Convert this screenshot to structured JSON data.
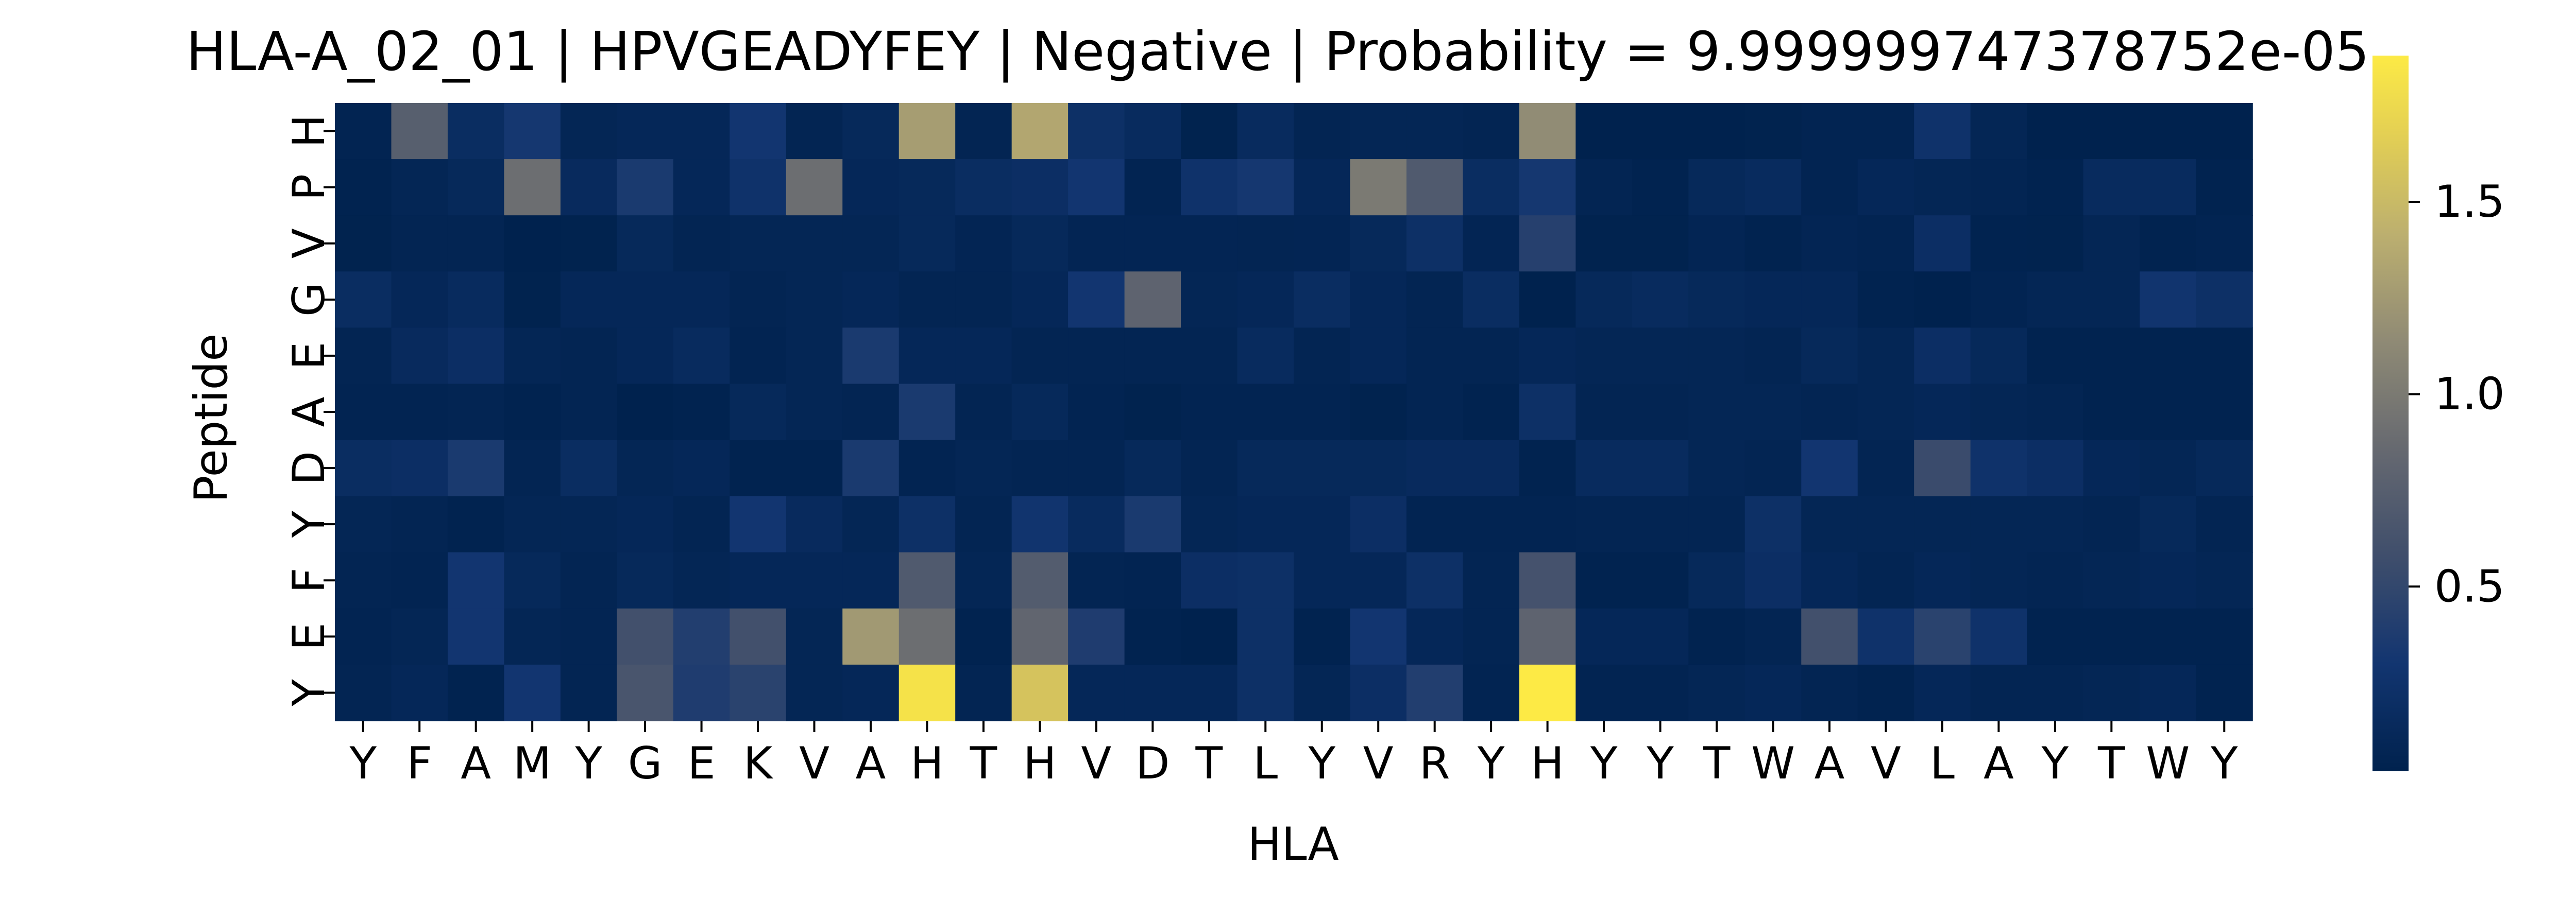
{
  "chart_data": {
    "type": "heatmap",
    "title": "HLA-A_02_01 | HPVGEADYFEY | Negative | Probability = 9.999999747378752e-05",
    "xlabel": "HLA",
    "ylabel": "Peptide",
    "x_categories": [
      "Y",
      "F",
      "A",
      "M",
      "Y",
      "G",
      "E",
      "K",
      "V",
      "A",
      "H",
      "T",
      "H",
      "V",
      "D",
      "T",
      "L",
      "Y",
      "V",
      "R",
      "Y",
      "H",
      "Y",
      "Y",
      "T",
      "W",
      "A",
      "V",
      "L",
      "A",
      "Y",
      "T",
      "W",
      "Y"
    ],
    "y_categories": [
      "H",
      "P",
      "V",
      "G",
      "E",
      "A",
      "D",
      "Y",
      "F",
      "E",
      "Y"
    ],
    "values": [
      [
        0.05,
        0.75,
        0.18,
        0.32,
        0.08,
        0.1,
        0.1,
        0.3,
        0.06,
        0.12,
        1.28,
        0.06,
        1.35,
        0.22,
        0.15,
        0.03,
        0.15,
        0.06,
        0.08,
        0.08,
        0.06,
        1.15,
        0.02,
        0.02,
        0.02,
        0.03,
        0.05,
        0.05,
        0.25,
        0.08,
        0.02,
        0.02,
        0.02,
        0.02
      ],
      [
        0.04,
        0.08,
        0.12,
        0.9,
        0.14,
        0.35,
        0.1,
        0.25,
        0.9,
        0.1,
        0.12,
        0.18,
        0.2,
        0.3,
        0.05,
        0.25,
        0.32,
        0.1,
        1.0,
        0.7,
        0.18,
        0.32,
        0.06,
        0.04,
        0.12,
        0.15,
        0.05,
        0.1,
        0.08,
        0.06,
        0.04,
        0.15,
        0.15,
        0.04
      ],
      [
        0.03,
        0.06,
        0.06,
        0.02,
        0.03,
        0.12,
        0.06,
        0.08,
        0.08,
        0.08,
        0.12,
        0.07,
        0.12,
        0.07,
        0.07,
        0.07,
        0.06,
        0.07,
        0.12,
        0.22,
        0.07,
        0.42,
        0.03,
        0.03,
        0.07,
        0.04,
        0.07,
        0.05,
        0.2,
        0.04,
        0.03,
        0.08,
        0.04,
        0.05
      ],
      [
        0.18,
        0.1,
        0.15,
        0.03,
        0.1,
        0.1,
        0.1,
        0.06,
        0.08,
        0.1,
        0.06,
        0.06,
        0.1,
        0.3,
        0.8,
        0.08,
        0.1,
        0.18,
        0.1,
        0.06,
        0.18,
        0.02,
        0.12,
        0.15,
        0.12,
        0.1,
        0.1,
        0.04,
        0.02,
        0.05,
        0.08,
        0.08,
        0.28,
        0.22
      ],
      [
        0.06,
        0.14,
        0.2,
        0.08,
        0.06,
        0.1,
        0.15,
        0.05,
        0.08,
        0.35,
        0.1,
        0.1,
        0.06,
        0.06,
        0.06,
        0.06,
        0.15,
        0.06,
        0.1,
        0.06,
        0.06,
        0.1,
        0.08,
        0.08,
        0.08,
        0.06,
        0.12,
        0.08,
        0.2,
        0.12,
        0.04,
        0.04,
        0.04,
        0.04
      ],
      [
        0.05,
        0.05,
        0.06,
        0.04,
        0.06,
        0.02,
        0.04,
        0.12,
        0.08,
        0.06,
        0.35,
        0.06,
        0.12,
        0.05,
        0.03,
        0.05,
        0.05,
        0.05,
        0.03,
        0.06,
        0.04,
        0.22,
        0.06,
        0.06,
        0.08,
        0.08,
        0.06,
        0.08,
        0.1,
        0.08,
        0.06,
        0.04,
        0.04,
        0.04
      ],
      [
        0.18,
        0.2,
        0.35,
        0.06,
        0.18,
        0.08,
        0.1,
        0.04,
        0.04,
        0.35,
        0.05,
        0.08,
        0.06,
        0.06,
        0.12,
        0.06,
        0.12,
        0.12,
        0.12,
        0.14,
        0.14,
        0.04,
        0.15,
        0.15,
        0.08,
        0.06,
        0.3,
        0.06,
        0.55,
        0.25,
        0.2,
        0.1,
        0.08,
        0.12
      ],
      [
        0.08,
        0.06,
        0.04,
        0.08,
        0.08,
        0.1,
        0.06,
        0.3,
        0.14,
        0.08,
        0.22,
        0.06,
        0.28,
        0.15,
        0.35,
        0.08,
        0.1,
        0.1,
        0.2,
        0.05,
        0.05,
        0.05,
        0.06,
        0.06,
        0.06,
        0.22,
        0.08,
        0.08,
        0.08,
        0.08,
        0.08,
        0.06,
        0.12,
        0.06
      ],
      [
        0.06,
        0.05,
        0.3,
        0.12,
        0.06,
        0.12,
        0.08,
        0.1,
        0.1,
        0.1,
        0.7,
        0.08,
        0.72,
        0.06,
        0.05,
        0.2,
        0.22,
        0.1,
        0.1,
        0.22,
        0.06,
        0.62,
        0.04,
        0.04,
        0.12,
        0.2,
        0.1,
        0.06,
        0.1,
        0.08,
        0.06,
        0.08,
        0.1,
        0.08
      ],
      [
        0.05,
        0.08,
        0.3,
        0.08,
        0.06,
        0.6,
        0.4,
        0.6,
        0.08,
        1.25,
        0.9,
        0.04,
        0.82,
        0.38,
        0.04,
        0.02,
        0.22,
        0.04,
        0.3,
        0.1,
        0.06,
        0.8,
        0.1,
        0.1,
        0.04,
        0.06,
        0.6,
        0.25,
        0.45,
        0.25,
        0.04,
        0.04,
        0.04,
        0.04
      ],
      [
        0.06,
        0.1,
        0.04,
        0.3,
        0.06,
        0.65,
        0.38,
        0.45,
        0.08,
        0.1,
        1.82,
        0.06,
        1.58,
        0.1,
        0.1,
        0.1,
        0.22,
        0.08,
        0.2,
        0.4,
        0.05,
        1.88,
        0.05,
        0.05,
        0.08,
        0.1,
        0.06,
        0.04,
        0.1,
        0.06,
        0.06,
        0.08,
        0.1,
        0.04
      ]
    ],
    "colormap": "cividis",
    "colorbar": {
      "ticks": [
        0.5,
        1.0,
        1.5
      ],
      "tick_labels": [
        "0.5",
        "1.0",
        "1.5"
      ],
      "range": [
        0.02,
        1.88
      ]
    },
    "grid": false,
    "legend": "colorbar right"
  }
}
